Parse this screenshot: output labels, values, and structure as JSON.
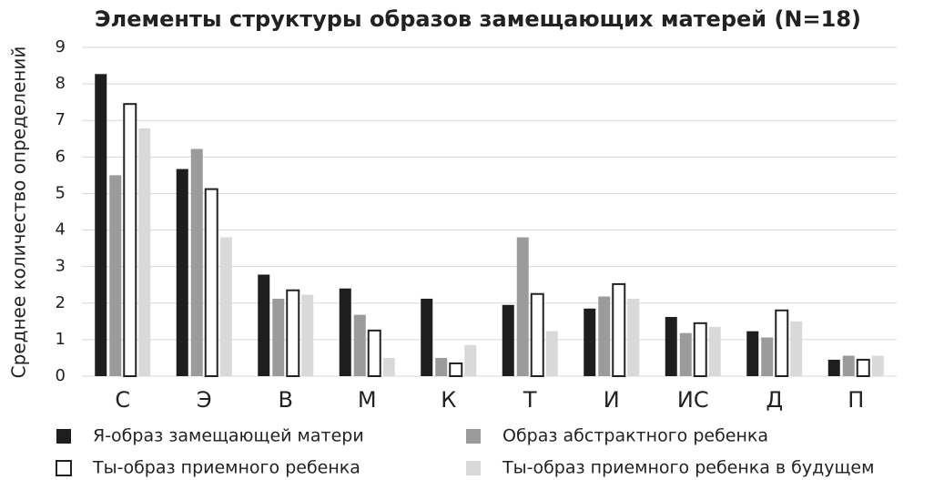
{
  "chart_data": {
    "type": "bar",
    "title": "Элементы структуры образов замещающих матерей (N=18)",
    "y_label": "Среднее количество определений",
    "categories": [
      "С",
      "Э",
      "В",
      "М",
      "К",
      "Т",
      "И",
      "ИС",
      "Д",
      "П"
    ],
    "series": [
      {
        "name": "Я-образ замещающей матери",
        "color": "#1e1e1e",
        "values": [
          8.27,
          5.67,
          2.78,
          2.4,
          2.12,
          1.95,
          1.85,
          1.62,
          1.23,
          0.45
        ]
      },
      {
        "name": "Образ абстрактного ребенка",
        "color": "#9b9b9b",
        "values": [
          5.5,
          6.22,
          2.12,
          1.68,
          0.5,
          3.8,
          2.18,
          1.18,
          1.06,
          0.56
        ]
      },
      {
        "name": "Ты-образ приемного ребенка",
        "color": "#ffffff",
        "values": [
          7.45,
          5.12,
          2.35,
          1.25,
          0.35,
          2.25,
          2.52,
          1.45,
          1.8,
          0.45
        ]
      },
      {
        "name": "Ты-образ приемного ребенка в будущем",
        "color": "#d9d9d9",
        "values": [
          6.78,
          3.8,
          2.23,
          0.5,
          0.85,
          1.23,
          2.12,
          1.35,
          1.5,
          0.56
        ]
      }
    ],
    "ylim": [
      0,
      9
    ],
    "yticks": [
      0,
      1,
      2,
      3,
      4,
      5,
      6,
      7,
      8,
      9
    ],
    "grid": true
  }
}
